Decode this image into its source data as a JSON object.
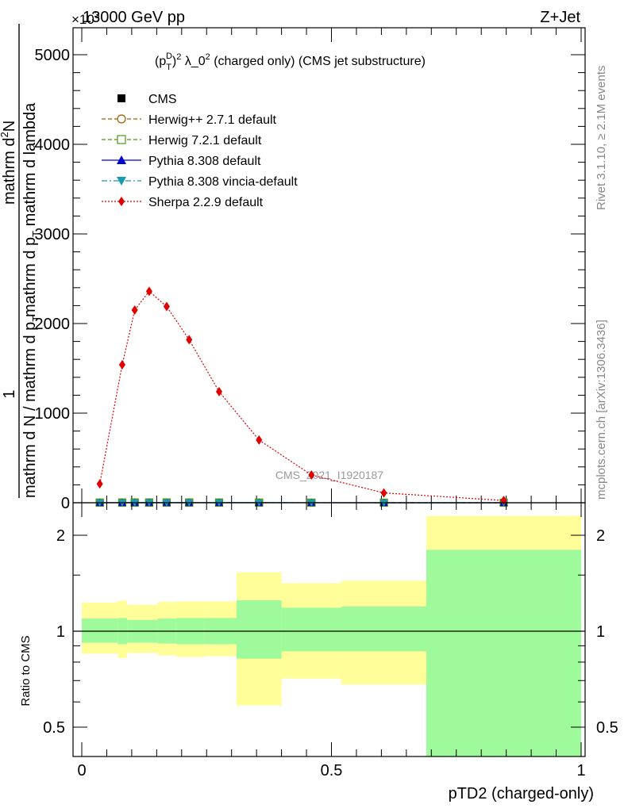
{
  "header": {
    "energy_label": "13000 GeV pp",
    "process_label": "Z+Jet",
    "exponent_label": "×10",
    "exponent_power": "3",
    "side_rivet": "Rivet 3.1.10, ≥ 2.1M events",
    "side_mcplots": "mcplots.cern.ch [arXiv:1306.3436]",
    "watermark": "CMS_2021_I1920187"
  },
  "chart_data": [
    {
      "type": "line",
      "title": "(p_T^D)^2 λ_0^2 (charged only) (CMS jet substructure)",
      "title_parts": {
        "p": "(p",
        "sub": "T",
        "sup": "D",
        "close": ")",
        "sq": "2",
        "mid": " λ_0",
        "sq2": "2",
        "rest": " (charged only) (CMS jet substructure)"
      },
      "ylabel": "1 / mathrm dN / mathrm d p_T mathrm d p_T mathrm d lambda mathrm d^2N",
      "ylabel_parts": {
        "one": "1",
        "den": "mathrm d N / mathrm d p",
        "den_sub": "T",
        "num": "mathrm d",
        "num_sup": "2",
        "num_tail": "N",
        "num2": "mathrm d p",
        "num2_sub": "T",
        "num2_tail": " mathrm d lambda"
      },
      "xlim": [
        0,
        1
      ],
      "ylim": [
        0,
        5300
      ],
      "y_ticks": [
        0,
        1000,
        2000,
        3000,
        4000,
        5000
      ],
      "y_tick_labels": [
        "0",
        "1000",
        "2000",
        "3000",
        "4000",
        "5000"
      ],
      "x": [
        0.036,
        0.081,
        0.106,
        0.135,
        0.17,
        0.215,
        0.275,
        0.355,
        0.46,
        0.605,
        0.845
      ],
      "series": [
        {
          "name": "CMS",
          "color": "#000000",
          "marker": "square",
          "values": [
            1.2,
            1.5,
            1.8,
            2.0,
            2.0,
            1.8,
            1.5,
            1.0,
            0.6,
            0.3,
            0.1
          ]
        },
        {
          "name": "Herwig++ 2.7.1 default",
          "color": "#a05a00",
          "marker": "circle-open",
          "line": "dashed",
          "values": [
            1.2,
            1.5,
            1.8,
            2.0,
            2.0,
            1.8,
            1.5,
            1.0,
            0.6,
            0.3,
            0.1
          ]
        },
        {
          "name": "Herwig 7.2.1 default",
          "color": "#4a9a10",
          "marker": "square-open",
          "line": "dashed",
          "values": [
            1.2,
            1.5,
            1.8,
            2.0,
            2.0,
            1.8,
            1.5,
            1.0,
            0.6,
            0.3,
            0.1
          ]
        },
        {
          "name": "Pythia 8.308 default",
          "color": "#0000cc",
          "marker": "triangle-up",
          "line": "solid",
          "values": [
            1.2,
            1.5,
            1.8,
            2.0,
            2.0,
            1.8,
            1.5,
            1.0,
            0.6,
            0.3,
            0.1
          ]
        },
        {
          "name": "Pythia 8.308 vincia-default",
          "color": "#1a9ab0",
          "marker": "triangle-down",
          "line": "dashdot",
          "values": [
            1.2,
            1.5,
            1.8,
            2.0,
            2.0,
            1.8,
            1.5,
            1.0,
            0.6,
            0.3,
            0.1
          ]
        },
        {
          "name": "Sherpa 2.2.9 default",
          "color": "#e00000",
          "marker": "diamond",
          "line": "dotted",
          "values": [
            210,
            1540,
            2150,
            2360,
            2190,
            1820,
            1240,
            700,
            310,
            110,
            25
          ]
        }
      ]
    },
    {
      "type": "area",
      "ylabel": "Ratio to CMS",
      "xlabel": "pTD2 (charged-only)",
      "xlim": [
        0,
        1
      ],
      "ylim": [
        0.33,
        2.3
      ],
      "y_ticks": [
        0.5,
        1,
        2
      ],
      "y_tick_labels": [
        "0.5",
        "1",
        "2"
      ],
      "x_ticks": [
        0,
        0.5,
        1
      ],
      "x_tick_labels": [
        "0",
        "0.5",
        "1"
      ],
      "reference": 1,
      "colors": {
        "inner": "#9efa9a",
        "outer": "#fffe99"
      },
      "bins": [
        {
          "x0": 0.0,
          "x1": 0.072,
          "in_lo": 0.92,
          "in_hi": 1.095,
          "out_lo": 0.85,
          "out_hi": 1.23
        },
        {
          "x0": 0.072,
          "x1": 0.091,
          "in_lo": 0.91,
          "in_hi": 1.1,
          "out_lo": 0.825,
          "out_hi": 1.245
        },
        {
          "x0": 0.091,
          "x1": 0.152,
          "in_lo": 0.92,
          "in_hi": 1.085,
          "out_lo": 0.855,
          "out_hi": 1.21
        },
        {
          "x0": 0.152,
          "x1": 0.189,
          "in_lo": 0.915,
          "in_hi": 1.095,
          "out_lo": 0.84,
          "out_hi": 1.235
        },
        {
          "x0": 0.189,
          "x1": 0.246,
          "in_lo": 0.91,
          "in_hi": 1.1,
          "out_lo": 0.83,
          "out_hi": 1.24
        },
        {
          "x0": 0.246,
          "x1": 0.31,
          "in_lo": 0.91,
          "in_hi": 1.1,
          "out_lo": 0.835,
          "out_hi": 1.24
        },
        {
          "x0": 0.31,
          "x1": 0.4,
          "in_lo": 0.82,
          "in_hi": 1.25,
          "out_lo": 0.585,
          "out_hi": 1.53
        },
        {
          "x0": 0.4,
          "x1": 0.52,
          "in_lo": 0.865,
          "in_hi": 1.185,
          "out_lo": 0.71,
          "out_hi": 1.415
        },
        {
          "x0": 0.52,
          "x1": 0.69,
          "in_lo": 0.865,
          "in_hi": 1.195,
          "out_lo": 0.68,
          "out_hi": 1.44
        },
        {
          "x0": 0.69,
          "x1": 1.0,
          "in_lo": 0.33,
          "in_hi": 1.8,
          "out_lo": 0.33,
          "out_hi": 2.3
        }
      ]
    }
  ]
}
